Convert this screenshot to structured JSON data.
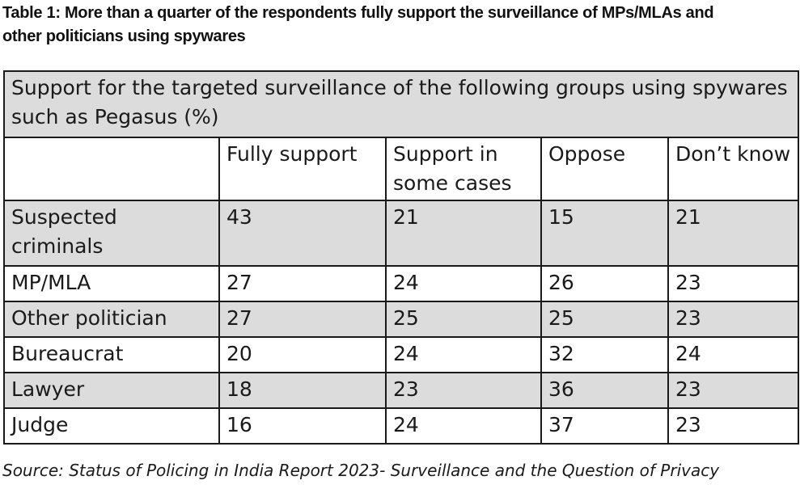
{
  "caption": {
    "line1": "Table 1: More than a quarter of the respondents fully support the surveillance of MPs/MLAs and",
    "line2": "other politicians using spywares"
  },
  "table": {
    "title": "Support for the targeted surveillance of the following groups using spywares such as Pegasus (%)",
    "headers": [
      "",
      "Fully support",
      "Support in some cases",
      "Oppose",
      "Don’t know"
    ],
    "rows": [
      {
        "group": "Suspected criminals",
        "fully_support": "43",
        "support_some_cases": "21",
        "oppose": "15",
        "dont_know": "21"
      },
      {
        "group": "MP/MLA",
        "fully_support": "27",
        "support_some_cases": "24",
        "oppose": "26",
        "dont_know": "23"
      },
      {
        "group": "Other politician",
        "fully_support": "27",
        "support_some_cases": "25",
        "oppose": "25",
        "dont_know": "23"
      },
      {
        "group": "Bureaucrat",
        "fully_support": "20",
        "support_some_cases": "24",
        "oppose": "32",
        "dont_know": "24"
      },
      {
        "group": "Lawyer",
        "fully_support": "18",
        "support_some_cases": "23",
        "oppose": "36",
        "dont_know": "23"
      },
      {
        "group": "Judge",
        "fully_support": "16",
        "support_some_cases": "24",
        "oppose": "37",
        "dont_know": "23"
      }
    ]
  },
  "source": "Source: Status of Policing in India Report 2023- Surveillance and the Question of Privacy",
  "colors": {
    "row_shade": "#dcdcdc",
    "border": "#1a1a1a"
  }
}
